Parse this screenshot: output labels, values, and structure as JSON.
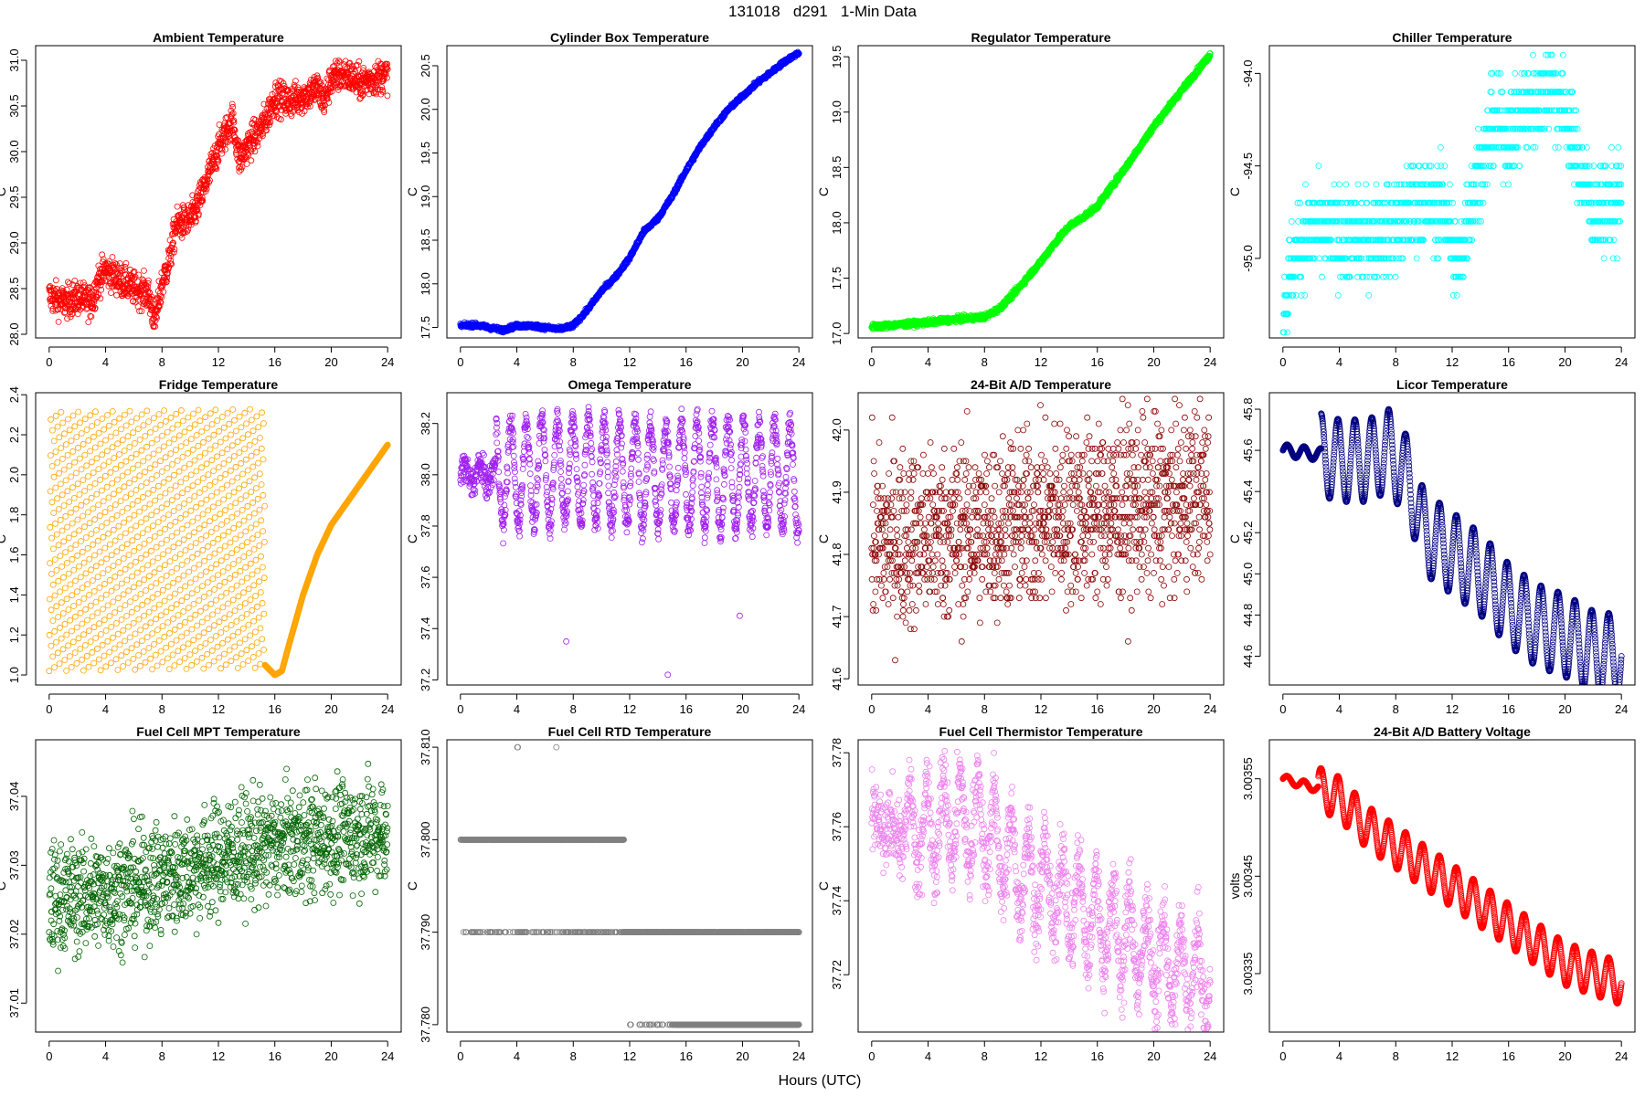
{
  "figure": {
    "title": "131018   d291   1-Min Data",
    "xlabel": "Hours (UTC)"
  },
  "chart_data": [
    {
      "type": "scatter",
      "title": "Ambient Temperature",
      "ylabel": "C",
      "color": "#ff0000",
      "xlim": [
        -0.96,
        24.96
      ],
      "ylim": [
        27.96,
        31.16
      ],
      "xticks": [
        0,
        4,
        8,
        12,
        16,
        20,
        24
      ],
      "yticks": [
        28.0,
        28.5,
        29.0,
        29.5,
        30.0,
        30.5,
        31.0
      ],
      "ytick_labels": [
        "28.0",
        "28.5",
        "29.0",
        "29.5",
        "30.0",
        "30.5",
        "31.0"
      ],
      "pattern": "noisy",
      "amplitude": 0.18,
      "key_points": [
        [
          0,
          28.42
        ],
        [
          1,
          28.35
        ],
        [
          2,
          28.4
        ],
        [
          3,
          28.35
        ],
        [
          3.5,
          28.6
        ],
        [
          4,
          28.7
        ],
        [
          5,
          28.6
        ],
        [
          6,
          28.5
        ],
        [
          7,
          28.45
        ],
        [
          7.5,
          28.15
        ],
        [
          8,
          28.55
        ],
        [
          8.5,
          28.8
        ],
        [
          9,
          29.2
        ],
        [
          10,
          29.25
        ],
        [
          10.5,
          29.4
        ],
        [
          11,
          29.6
        ],
        [
          12,
          30.05
        ],
        [
          13,
          30.35
        ],
        [
          13.5,
          29.9
        ],
        [
          14,
          30.05
        ],
        [
          15,
          30.25
        ],
        [
          15.5,
          30.4
        ],
        [
          16,
          30.6
        ],
        [
          17,
          30.55
        ],
        [
          18,
          30.6
        ],
        [
          19,
          30.7
        ],
        [
          19.5,
          30.55
        ],
        [
          20,
          30.8
        ],
        [
          21,
          30.85
        ],
        [
          22,
          30.75
        ],
        [
          23,
          30.8
        ],
        [
          24,
          30.85
        ]
      ]
    },
    {
      "type": "scatter",
      "title": "Cylinder Box Temperature",
      "ylabel": "C",
      "color": "#0000ff",
      "xlim": [
        -0.96,
        24.96
      ],
      "ylim": [
        17.38,
        20.73
      ],
      "xticks": [
        0,
        4,
        8,
        12,
        16,
        20,
        24
      ],
      "yticks": [
        17.5,
        18.0,
        18.5,
        19.0,
        19.5,
        20.0,
        20.5
      ],
      "ytick_labels": [
        "17.5",
        "18.0",
        "18.5",
        "19.0",
        "19.5",
        "20.0",
        "20.5"
      ],
      "pattern": "smooth",
      "amplitude": 0.012,
      "key_points": [
        [
          0,
          17.52
        ],
        [
          1,
          17.53
        ],
        [
          2,
          17.5
        ],
        [
          3,
          17.47
        ],
        [
          4,
          17.52
        ],
        [
          5,
          17.52
        ],
        [
          6,
          17.5
        ],
        [
          7,
          17.48
        ],
        [
          8,
          17.52
        ],
        [
          9,
          17.7
        ],
        [
          10,
          17.92
        ],
        [
          11,
          18.08
        ],
        [
          12,
          18.3
        ],
        [
          13,
          18.6
        ],
        [
          14,
          18.75
        ],
        [
          15,
          19.0
        ],
        [
          16,
          19.3
        ],
        [
          17,
          19.57
        ],
        [
          18,
          19.8
        ],
        [
          19,
          20.0
        ],
        [
          20,
          20.15
        ],
        [
          21,
          20.3
        ],
        [
          22,
          20.42
        ],
        [
          23,
          20.55
        ],
        [
          24,
          20.65
        ]
      ]
    },
    {
      "type": "scatter",
      "title": "Regulator Temperature",
      "ylabel": "C",
      "color": "#00ff00",
      "xlim": [
        -0.96,
        24.96
      ],
      "ylim": [
        16.96,
        19.6
      ],
      "xticks": [
        0,
        4,
        8,
        12,
        16,
        20,
        24
      ],
      "yticks": [
        17.0,
        17.5,
        18.0,
        18.5,
        19.0,
        19.5
      ],
      "ytick_labels": [
        "17.0",
        "17.5",
        "18.0",
        "18.5",
        "19.0",
        "19.5"
      ],
      "pattern": "smooth",
      "amplitude": 0.012,
      "key_points": [
        [
          0,
          17.06
        ],
        [
          2,
          17.08
        ],
        [
          4,
          17.1
        ],
        [
          6,
          17.13
        ],
        [
          8,
          17.15
        ],
        [
          9,
          17.22
        ],
        [
          10,
          17.35
        ],
        [
          11,
          17.5
        ],
        [
          12,
          17.65
        ],
        [
          13,
          17.82
        ],
        [
          14,
          17.97
        ],
        [
          15,
          18.05
        ],
        [
          16,
          18.15
        ],
        [
          18,
          18.5
        ],
        [
          20,
          18.87
        ],
        [
          22,
          19.2
        ],
        [
          24,
          19.52
        ]
      ]
    },
    {
      "type": "scatter",
      "title": "Chiller Temperature",
      "ylabel": "C",
      "color": "#00ffff",
      "xlim": [
        -0.96,
        24.96
      ],
      "ylim": [
        -95.43,
        -93.85
      ],
      "xticks": [
        0,
        4,
        8,
        12,
        16,
        20,
        24
      ],
      "yticks": [
        -95.0,
        -94.5,
        -94.0
      ],
      "ytick_labels": [
        "-95.0",
        "-94.5",
        "-94.0"
      ],
      "pattern": "quantized",
      "quantum": 0.1,
      "amplitude": 0.12,
      "key_points": [
        [
          0,
          -95.35
        ],
        [
          0.5,
          -95.1
        ],
        [
          1,
          -94.95
        ],
        [
          2,
          -94.85
        ],
        [
          4,
          -94.88
        ],
        [
          6,
          -94.88
        ],
        [
          8,
          -94.82
        ],
        [
          9.5,
          -94.72
        ],
        [
          11.5,
          -94.72
        ],
        [
          12,
          -94.95
        ],
        [
          12.5,
          -95.05
        ],
        [
          13,
          -94.8
        ],
        [
          14,
          -94.5
        ],
        [
          15,
          -94.25
        ],
        [
          16,
          -94.35
        ],
        [
          17,
          -94.2
        ],
        [
          18,
          -94.15
        ],
        [
          19,
          -94.05
        ],
        [
          20,
          -94.2
        ],
        [
          21,
          -94.5
        ],
        [
          22,
          -94.75
        ],
        [
          23,
          -94.72
        ],
        [
          24,
          -94.7
        ]
      ]
    },
    {
      "type": "scatter",
      "title": "Fridge Temperature",
      "ylabel": "C",
      "color": "#ffa500",
      "xlim": [
        -0.96,
        24.96
      ],
      "ylim": [
        0.95,
        2.41
      ],
      "xticks": [
        0,
        4,
        8,
        12,
        16,
        20,
        24
      ],
      "yticks": [
        1.0,
        1.2,
        1.4,
        1.6,
        1.8,
        2.0,
        2.2,
        2.4
      ],
      "ytick_labels": [
        "1.0",
        "1.2",
        "1.4",
        "1.6",
        "1.8",
        "2.0",
        "2.2",
        "2.4"
      ],
      "pattern": "sawtooth",
      "sawtooth_end": 15.3,
      "sawtooth_low": 1.02,
      "sawtooth_high": 2.33,
      "key_points": [
        [
          15.3,
          1.05
        ],
        [
          16,
          1.0
        ],
        [
          16.5,
          1.02
        ],
        [
          17,
          1.15
        ],
        [
          18,
          1.4
        ],
        [
          19,
          1.6
        ],
        [
          20,
          1.75
        ],
        [
          21,
          1.85
        ],
        [
          22,
          1.95
        ],
        [
          23,
          2.05
        ],
        [
          24,
          2.15
        ]
      ]
    },
    {
      "type": "scatter",
      "title": "Omega Temperature",
      "ylabel": "C",
      "color": "#a020f0",
      "xlim": [
        -0.96,
        24.96
      ],
      "ylim": [
        37.18,
        38.32
      ],
      "xticks": [
        0,
        4,
        8,
        12,
        16,
        20,
        24
      ],
      "yticks": [
        37.2,
        37.4,
        37.6,
        37.8,
        38.0,
        38.2
      ],
      "ytick_labels": [
        "37.2",
        "37.4",
        "37.6",
        "37.8",
        "38.0",
        "38.2"
      ],
      "pattern": "oscillating",
      "osc_start": 2.5,
      "period": 1.1,
      "amplitude": 0.2,
      "small_amplitude": 0.04,
      "jitter": 0.03,
      "key_points": [
        [
          0,
          38.0
        ],
        [
          2.5,
          38.0
        ],
        [
          4,
          38.0
        ],
        [
          8,
          38.02
        ],
        [
          12,
          38.0
        ],
        [
          16,
          38.0
        ],
        [
          20,
          38.0
        ],
        [
          24,
          37.98
        ]
      ],
      "outliers": [
        [
          7.5,
          37.35
        ],
        [
          14.7,
          37.22
        ],
        [
          19.8,
          37.45
        ]
      ]
    },
    {
      "type": "scatter",
      "title": "24-Bit A/D Temperature",
      "ylabel": "C",
      "color": "#8b0000",
      "xlim": [
        -0.96,
        24.96
      ],
      "ylim": [
        41.59,
        42.06
      ],
      "xticks": [
        0,
        4,
        8,
        12,
        16,
        20,
        24
      ],
      "yticks": [
        41.6,
        41.7,
        41.8,
        41.9,
        42.0
      ],
      "ytick_labels": [
        "41.6",
        "41.7",
        "41.8",
        "41.9",
        "42.0"
      ],
      "pattern": "quantized",
      "quantum": 0.01,
      "amplitude": 0.07,
      "key_points": [
        [
          0,
          41.82
        ],
        [
          4,
          41.83
        ],
        [
          8,
          41.84
        ],
        [
          12,
          41.86
        ],
        [
          16,
          41.87
        ],
        [
          20,
          41.88
        ],
        [
          24,
          41.9
        ]
      ]
    },
    {
      "type": "scatter",
      "title": "Licor Temperature",
      "ylabel": "C",
      "color": "#000080",
      "xlim": [
        -0.96,
        24.96
      ],
      "ylim": [
        44.46,
        45.88
      ],
      "xticks": [
        0,
        4,
        8,
        12,
        16,
        20,
        24
      ],
      "yticks": [
        44.6,
        44.8,
        45.0,
        45.2,
        45.4,
        45.6,
        45.8
      ],
      "ytick_labels": [
        "44.6",
        "44.8",
        "45.0",
        "45.2",
        "45.4",
        "45.6",
        "45.8"
      ],
      "pattern": "oscillating",
      "osc_start": 2.7,
      "period": 1.2,
      "amplitude": 0.2,
      "small_amplitude": 0.03,
      "jitter": 0.0,
      "key_points": [
        [
          0,
          45.6
        ],
        [
          2.7,
          45.58
        ],
        [
          4,
          45.55
        ],
        [
          6,
          45.55
        ],
        [
          7.5,
          45.6
        ],
        [
          9,
          45.45
        ],
        [
          10,
          45.2
        ],
        [
          12,
          45.1
        ],
        [
          14,
          45.0
        ],
        [
          16,
          44.85
        ],
        [
          18,
          44.75
        ],
        [
          20,
          44.7
        ],
        [
          22,
          44.62
        ],
        [
          24,
          44.6
        ]
      ]
    },
    {
      "type": "scatter",
      "title": "Fuel Cell MPT Temperature",
      "ylabel": "C",
      "color": "#006400",
      "xlim": [
        -0.96,
        24.96
      ],
      "ylim": [
        37.0058,
        37.0482
      ],
      "xticks": [
        0,
        4,
        8,
        12,
        16,
        20,
        24
      ],
      "yticks": [
        37.01,
        37.02,
        37.03,
        37.04
      ],
      "ytick_labels": [
        "37.01",
        "37.02",
        "37.03",
        "37.04"
      ],
      "pattern": "noisy",
      "amplitude": 0.008,
      "key_points": [
        [
          0,
          37.025
        ],
        [
          4,
          37.026
        ],
        [
          8,
          37.028
        ],
        [
          12,
          37.031
        ],
        [
          16,
          37.033
        ],
        [
          20,
          37.034
        ],
        [
          24,
          37.035
        ]
      ]
    },
    {
      "type": "scatter",
      "title": "Fuel Cell RTD Temperature",
      "ylabel": "C",
      "color": "#808080",
      "xlim": [
        -0.96,
        24.96
      ],
      "ylim": [
        37.7792,
        37.8108
      ],
      "xticks": [
        0,
        4,
        8,
        12,
        16,
        20,
        24
      ],
      "yticks": [
        37.78,
        37.79,
        37.8,
        37.81
      ],
      "ytick_labels": [
        "37.780",
        "37.790",
        "37.800",
        "37.810"
      ],
      "pattern": "levels",
      "levels": [
        {
          "y": 37.8,
          "from": 0,
          "to": 11.6,
          "density": 0.85
        },
        {
          "y": 37.79,
          "from": 0.2,
          "to": 11.5,
          "density": 0.18
        },
        {
          "y": 37.79,
          "from": 11.5,
          "to": 24,
          "density": 0.75
        },
        {
          "y": 37.78,
          "from": 12.0,
          "to": 15.3,
          "density": 0.15
        },
        {
          "y": 37.78,
          "from": 15.3,
          "to": 24,
          "density": 1.0
        },
        {
          "y": 37.81,
          "from": 2.0,
          "to": 7.6,
          "density": 0.01
        }
      ]
    },
    {
      "type": "scatter",
      "title": "Fuel Cell Thermistor Temperature",
      "ylabel": "C",
      "color": "#ee82ee",
      "xlim": [
        -0.96,
        24.96
      ],
      "ylim": [
        37.7045,
        37.7835
      ],
      "xticks": [
        0,
        4,
        8,
        12,
        16,
        20,
        24
      ],
      "yticks": [
        37.72,
        37.74,
        37.76,
        37.78
      ],
      "ytick_labels": [
        "37.72",
        "37.74",
        "37.76",
        "37.78"
      ],
      "pattern": "oscillating",
      "osc_start": 2.5,
      "period": 1.2,
      "amplitude": 0.012,
      "small_amplitude": 0.003,
      "jitter": 0.005,
      "key_points": [
        [
          0,
          37.76
        ],
        [
          2.5,
          37.758
        ],
        [
          4,
          37.76
        ],
        [
          6,
          37.762
        ],
        [
          8,
          37.76
        ],
        [
          10,
          37.75
        ],
        [
          12,
          37.745
        ],
        [
          14,
          37.74
        ],
        [
          16,
          37.735
        ],
        [
          18,
          37.73
        ],
        [
          20,
          37.725
        ],
        [
          22,
          37.72
        ],
        [
          24,
          37.718
        ]
      ]
    },
    {
      "type": "scatter",
      "title": "24-Bit A/D Battery Voltage",
      "ylabel": "volts",
      "color": "#ff0000",
      "xlim": [
        -0.96,
        24.96
      ],
      "ylim": [
        3.00329,
        3.00359
      ],
      "xticks": [
        0,
        4,
        8,
        12,
        16,
        20,
        24
      ],
      "yticks": [
        3.00335,
        3.00345,
        3.00355
      ],
      "ytick_labels": [
        "3.00335",
        "3.00345",
        "3.00355"
      ],
      "pattern": "oscillating",
      "osc_start": 2.5,
      "period": 1.2,
      "amplitude": 2.2e-05,
      "small_amplitude": 4e-06,
      "jitter": 0.0,
      "key_points": [
        [
          0,
          3.00355
        ],
        [
          2.5,
          3.00354
        ],
        [
          4,
          3.00353
        ],
        [
          6,
          3.0035
        ],
        [
          8,
          3.00348
        ],
        [
          10,
          3.00346
        ],
        [
          12,
          3.00344
        ],
        [
          14,
          3.00342
        ],
        [
          16,
          3.0034
        ],
        [
          18,
          3.00338
        ],
        [
          20,
          3.00336
        ],
        [
          22,
          3.00335
        ],
        [
          24,
          3.00334
        ]
      ]
    }
  ]
}
